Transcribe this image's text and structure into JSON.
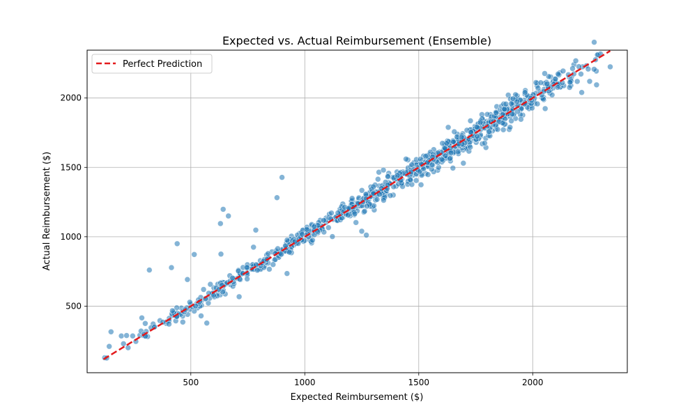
{
  "colors": {
    "points_fill": "#1f77b4",
    "points_stroke": "#ffffff",
    "reference_line": "#e31a1c",
    "grid": "#b0b0b0",
    "axes": "#000000",
    "legend_border": "#cccccc"
  },
  "chart_data": {
    "type": "scatter",
    "title": "Expected vs. Actual Reimbursement (Ensemble)",
    "xlabel": "Expected Reimbursement ($)",
    "ylabel": "Actual Reimbursement ($)",
    "xlim": [
      45,
      2415
    ],
    "ylim": [
      20,
      2345
    ],
    "xticks": [
      500,
      1000,
      1500,
      2000
    ],
    "yticks": [
      500,
      1000,
      1500,
      2000
    ],
    "grid": true,
    "legend_position": "upper-left",
    "reference_line": {
      "name": "Perfect Prediction",
      "style": "dashed",
      "x": [
        117,
        2340
      ],
      "y": [
        117,
        2340
      ]
    },
    "series": [
      {
        "sample_size": 1000,
        "generator": {
          "x_range": [
            117,
            2340
          ],
          "x_mode": 1800,
          "noise_sd": 32,
          "seed": 17
        },
        "points": [
          {
            "x": 122,
            "y": 128
          },
          {
            "x": 131,
            "y": 126
          },
          {
            "x": 142,
            "y": 210
          },
          {
            "x": 150,
            "y": 315
          },
          {
            "x": 195,
            "y": 285
          },
          {
            "x": 218,
            "y": 288
          },
          {
            "x": 245,
            "y": 285
          },
          {
            "x": 285,
            "y": 415
          },
          {
            "x": 300,
            "y": 375
          },
          {
            "x": 318,
            "y": 760
          },
          {
            "x": 415,
            "y": 778
          },
          {
            "x": 440,
            "y": 950
          },
          {
            "x": 465,
            "y": 385
          },
          {
            "x": 485,
            "y": 692
          },
          {
            "x": 515,
            "y": 872
          },
          {
            "x": 545,
            "y": 430
          },
          {
            "x": 570,
            "y": 378
          },
          {
            "x": 630,
            "y": 1095
          },
          {
            "x": 642,
            "y": 1198
          },
          {
            "x": 665,
            "y": 1150
          },
          {
            "x": 632,
            "y": 875
          },
          {
            "x": 712,
            "y": 568
          },
          {
            "x": 775,
            "y": 925
          },
          {
            "x": 785,
            "y": 1048
          },
          {
            "x": 878,
            "y": 1282
          },
          {
            "x": 900,
            "y": 1428
          },
          {
            "x": 922,
            "y": 735
          },
          {
            "x": 1250,
            "y": 1040
          },
          {
            "x": 1270,
            "y": 1012
          },
          {
            "x": 1325,
            "y": 1465
          },
          {
            "x": 1510,
            "y": 1375
          },
          {
            "x": 1650,
            "y": 1495
          },
          {
            "x": 2215,
            "y": 2040
          },
          {
            "x": 2250,
            "y": 2120
          },
          {
            "x": 2280,
            "y": 2095
          },
          {
            "x": 2340,
            "y": 2225
          },
          {
            "x": 2160,
            "y": 2150
          },
          {
            "x": 2120,
            "y": 2080
          }
        ]
      }
    ]
  }
}
